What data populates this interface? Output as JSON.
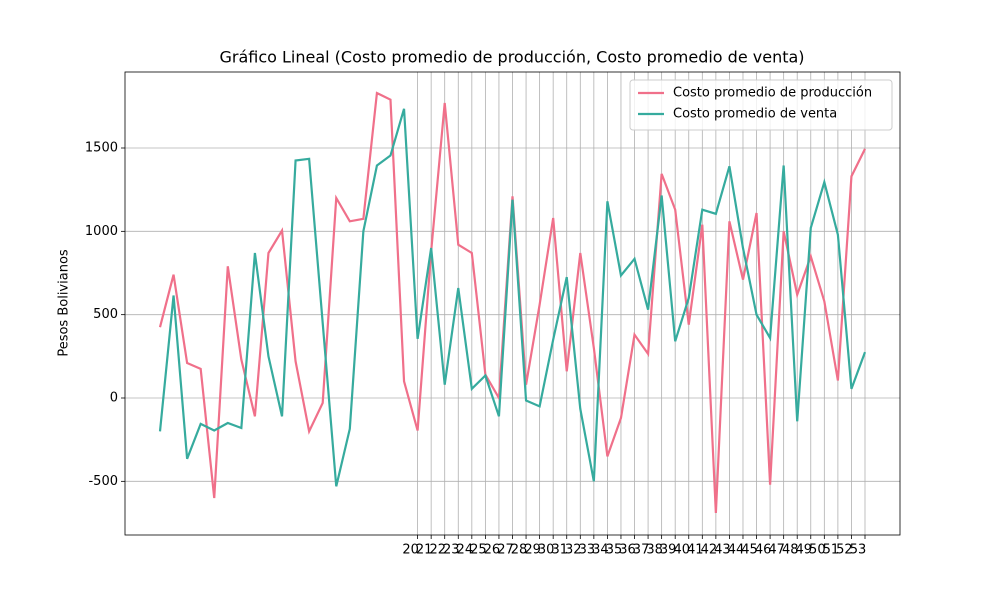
{
  "chart_data": {
    "type": "line",
    "title": "Gráfico Lineal (Costo promedio de producción, Costo promedio de venta)",
    "ylabel": "Pesos Bolivianos",
    "categories": [
      null,
      null,
      null,
      null,
      null,
      null,
      null,
      null,
      null,
      null,
      null,
      null,
      null,
      null,
      null,
      null,
      null,
      null,
      null,
      "20",
      "21",
      "22",
      "23",
      "24",
      "25",
      "26",
      "27",
      "28",
      "29",
      "30",
      "31",
      "32",
      "33",
      "34",
      "35",
      "36",
      "37",
      "38",
      "39",
      "40",
      "41",
      "42",
      "43",
      "44",
      "45",
      "46",
      "47",
      "48",
      "49",
      "50",
      "51",
      "52",
      "53"
    ],
    "series": [
      {
        "name": "Costo promedio de producción",
        "color": "#f0708a",
        "values": [
          425,
          740,
          210,
          175,
          -600,
          790,
          230,
          -110,
          870,
          1005,
          220,
          -200,
          -30,
          1200,
          1060,
          1075,
          1830,
          1790,
          100,
          -195,
          880,
          1770,
          920,
          870,
          140,
          0,
          1210,
          80,
          560,
          1080,
          160,
          870,
          300,
          -350,
          -120,
          380,
          265,
          1345,
          1130,
          440,
          1040,
          -690,
          1060,
          710,
          1110,
          -520,
          1000,
          620,
          850,
          580,
          105,
          1330,
          1495
        ]
      },
      {
        "name": "Costo promedio de venta",
        "color": "#36ab9e",
        "values": [
          -200,
          615,
          -365,
          -155,
          -195,
          -150,
          -180,
          870,
          250,
          -110,
          1425,
          1435,
          450,
          -530,
          -185,
          1000,
          1395,
          1455,
          1735,
          355,
          900,
          80,
          660,
          55,
          135,
          -110,
          1190,
          -15,
          -50,
          350,
          725,
          -65,
          -500,
          1180,
          735,
          835,
          530,
          1215,
          340,
          600,
          1130,
          1105,
          1390,
          900,
          500,
          360,
          1395,
          -140,
          1020,
          1295,
          980,
          55,
          275
        ]
      }
    ],
    "ylim": [
      -822,
      1956
    ],
    "yticks": [
      -500,
      0,
      500,
      1000,
      1500
    ],
    "grid": true,
    "legend": "upper right"
  }
}
